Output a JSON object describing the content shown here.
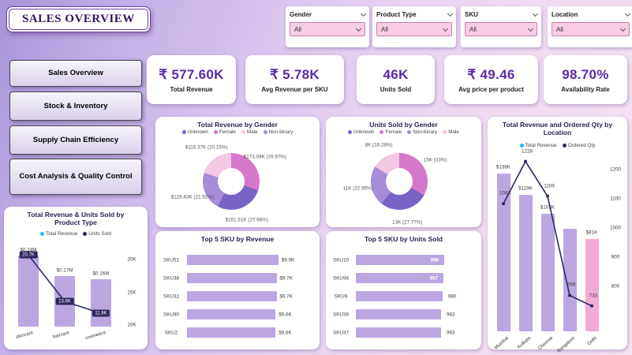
{
  "title": "SALES OVERVIEW",
  "filters": [
    {
      "label": "Gender",
      "value": "All"
    },
    {
      "label": "Product Type",
      "value": "All"
    },
    {
      "label": "SKU",
      "value": "All"
    },
    {
      "label": "Location",
      "value": "All"
    }
  ],
  "sidebar": {
    "items": [
      "Sales Overview",
      "Stock & Inventory",
      "Supply Chain Efficiency",
      "Cost Analysis & Quality Control"
    ]
  },
  "kpis": [
    {
      "value": "₹ 577.60K",
      "label": "Total Revenue"
    },
    {
      "value": "₹ 5.78K",
      "label": "Avg Revenue per SKU"
    },
    {
      "value": "46K",
      "label": "Units Sold"
    },
    {
      "value": "₹ 49.46",
      "label": "Avg price per product"
    },
    {
      "value": "98.70%",
      "label": "Availability Rate"
    }
  ],
  "colors": {
    "accent_purple": "#5b2aa8",
    "bar_purple": "#bca6e2",
    "bar_pink": "#f2abd6",
    "line_navy": "#252a63",
    "legend_blue": "#2eb5e8"
  },
  "chart_data": [
    {
      "id": "revenue_by_gender",
      "type": "pie",
      "title": "Total Revenue by Gender",
      "legend": [
        {
          "label": "Unknown",
          "color": "#7863c6"
        },
        {
          "label": "Female",
          "color": "#d678ca"
        },
        {
          "label": "Male",
          "color": "#f3c8e3"
        },
        {
          "label": "Non-binary",
          "color": "#a78cd9"
        }
      ],
      "slices": [
        {
          "name": "Female",
          "label": "$173.09K (29.97%)",
          "pct": 29.97,
          "color": "#d678ca"
        },
        {
          "name": "Unknown",
          "label": "$161.51K (27.96%)",
          "pct": 27.96,
          "color": "#7863c6"
        },
        {
          "name": "Non-binary",
          "label": "$126.63K (21.92%)",
          "pct": 21.92,
          "color": "#a78cd9"
        },
        {
          "name": "Male",
          "label": "$116.37K (20.15%)",
          "pct": 20.15,
          "color": "#f3c8e3"
        }
      ]
    },
    {
      "id": "units_by_gender",
      "type": "pie",
      "title": "Units Sold by Gender",
      "legend": [
        {
          "label": "Unknown",
          "color": "#7863c6"
        },
        {
          "label": "Female",
          "color": "#d678ca"
        },
        {
          "label": "Non-binary",
          "color": "#a78cd9"
        },
        {
          "label": "Male",
          "color": "#f3c8e3"
        }
      ],
      "slices": [
        {
          "name": "Female",
          "label": "15K (33%)",
          "pct": 33,
          "color": "#d678ca"
        },
        {
          "name": "Unknown",
          "label": "13K (27.77%)",
          "pct": 27.77,
          "color": "#7863c6"
        },
        {
          "name": "Non-binary",
          "label": "11K (22.95%)",
          "pct": 22.95,
          "color": "#a78cd9"
        },
        {
          "name": "Male",
          "label": "8K (16.28%)",
          "pct": 16.28,
          "color": "#f3c8e3"
        }
      ]
    },
    {
      "id": "product_type_combo",
      "type": "bar+line",
      "title": "Total Revenue & Units Sold by Product Type",
      "legend": [
        {
          "label": "Total Revenue",
          "color": "#2eb5e8"
        },
        {
          "label": "Units Sold",
          "color": "#252a63"
        }
      ],
      "categories": [
        "skincare",
        "haircare",
        "cosmetics"
      ],
      "bars": {
        "labels": [
          "$0.24M",
          "$0.17M",
          "$0.16M"
        ],
        "values": [
          0.24,
          0.17,
          0.16
        ],
        "color": "#bca6e2"
      },
      "line": {
        "labels": [
          "20.7K",
          "13.6K",
          "11.8K"
        ],
        "values": [
          20.7,
          13.6,
          11.8
        ],
        "color": "#252a63"
      },
      "right_axis": [
        "20K",
        "15K",
        "10K"
      ],
      "right_axis_values": [
        20,
        15,
        10
      ]
    },
    {
      "id": "top5_revenue",
      "type": "bar",
      "title": "Top 5 SKU by Revenue",
      "bar_color": "#bca6e2",
      "rows": [
        {
          "sku": "SKU51",
          "label": "$9.9K",
          "value": 9.9,
          "label_inside": false
        },
        {
          "sku": "SKU38",
          "label": "$9.7K",
          "value": 9.7,
          "label_inside": false
        },
        {
          "sku": "SKU31",
          "label": "$9.7K",
          "value": 9.7,
          "label_inside": false
        },
        {
          "sku": "SKU90",
          "label": "$9.6K",
          "value": 9.6,
          "label_inside": false
        },
        {
          "sku": "SKU2",
          "label": "$9.6K",
          "value": 9.6,
          "label_inside": false
        }
      ]
    },
    {
      "id": "top5_units",
      "type": "bar",
      "title": "Top 5 SKU by Units Sold",
      "bar_color": "#bca6e2",
      "rows": [
        {
          "sku": "SKU10",
          "label": "996",
          "value": 996,
          "label_inside": true
        },
        {
          "sku": "SKU94",
          "label": "987",
          "value": 987,
          "label_inside": true
        },
        {
          "sku": "SKU9",
          "label": "980",
          "value": 980,
          "label_inside": false
        },
        {
          "sku": "SKU36",
          "label": "963",
          "value": 963,
          "label_inside": false
        },
        {
          "sku": "SKU37",
          "label": "963",
          "value": 963,
          "label_inside": false
        }
      ]
    },
    {
      "id": "location_combo",
      "type": "bar+line",
      "title": "Total Revenue and Ordered Qty by Location",
      "legend": [
        {
          "label": "Total Revenue",
          "color": "#2eb5e8"
        },
        {
          "label": "Ordered Qty",
          "color": "#252a63"
        }
      ],
      "categories": [
        "Mumbai",
        "Kolkata",
        "Chennai",
        "Bangalore",
        "Delhi"
      ],
      "bars": {
        "labels": [
          "$138K",
          "$119K",
          "$103K",
          "",
          "$81K"
        ],
        "values": [
          138,
          119,
          103,
          90,
          81
        ],
        "colors": [
          "#bca6e2",
          "#bca6e2",
          "#bca6e2",
          "#bca6e2",
          "#f2abd6"
        ]
      },
      "line": {
        "labels": [
          "1083",
          "1228",
          "1109",
          "769",
          "733"
        ],
        "values": [
          1083,
          1228,
          1109,
          769,
          733
        ],
        "color": "#252a63"
      },
      "right_axis": [
        "1200",
        "1100",
        "1000",
        "900",
        "800"
      ],
      "right_axis_values": [
        1200,
        1100,
        1000,
        900,
        800
      ]
    }
  ]
}
